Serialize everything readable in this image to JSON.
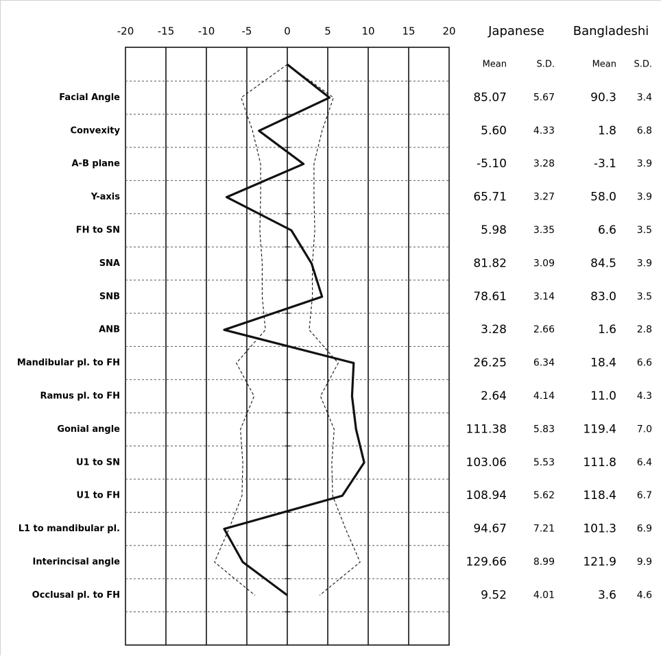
{
  "chart_data": {
    "type": "line",
    "xlim": [
      -20,
      20
    ],
    "x_ticks": [
      "-20",
      "-15",
      "-10",
      "-5",
      "0",
      "5",
      "10",
      "15",
      "20"
    ],
    "rows": [
      "Facial Angle",
      "Convexity",
      "A-B plane",
      "Y-axis",
      "FH to SN",
      "SNA",
      "SNB",
      "ANB",
      "Mandibular pl. to FH",
      "Ramus pl. to FH",
      "Gonial angle",
      "U1 to SN",
      "U1 to FH",
      "L1 to mandibular pl.",
      "Interincisal angle",
      "Occlusal pl. to FH"
    ],
    "series": [
      {
        "style": "solid-thick",
        "values": [
          0,
          5.2,
          -3.5,
          2,
          -7.5,
          0.5,
          3,
          4.3,
          -7.8,
          8.2,
          8,
          8.5,
          9.5,
          6.8,
          -7.8,
          -5.5,
          0
        ]
      },
      {
        "style": "dashed-upper",
        "values": [
          0,
          5.7,
          4.3,
          3.3,
          3.3,
          3.4,
          3.1,
          3.1,
          2.7,
          6.3,
          4.1,
          5.8,
          5.5,
          5.6,
          7.2,
          9,
          4
        ]
      },
      {
        "style": "dashed-lower",
        "values": [
          0,
          -5.7,
          -4.3,
          -3.3,
          -3.3,
          -3.4,
          -3.1,
          -3.1,
          -2.7,
          -6.3,
          -4.1,
          -5.8,
          -5.5,
          -5.6,
          -7.2,
          -9,
          -4
        ]
      }
    ],
    "grid": true
  },
  "table": {
    "groups": [
      "Japanese",
      "Bangladeshi"
    ],
    "subheaders": [
      "Mean",
      "S.D.",
      "Mean",
      "S.D."
    ],
    "rows": [
      [
        "85.07",
        "5.67",
        "90.3",
        "3.4"
      ],
      [
        "5.60",
        "4.33",
        "1.8",
        "6.8"
      ],
      [
        "-5.10",
        "3.28",
        "-3.1",
        "3.9"
      ],
      [
        "65.71",
        "3.27",
        "58.0",
        "3.9"
      ],
      [
        "5.98",
        "3.35",
        "6.6",
        "3.5"
      ],
      [
        "81.82",
        "3.09",
        "84.5",
        "3.9"
      ],
      [
        "78.61",
        "3.14",
        "83.0",
        "3.5"
      ],
      [
        "3.28",
        "2.66",
        "1.6",
        "2.8"
      ],
      [
        "26.25",
        "6.34",
        "18.4",
        "6.6"
      ],
      [
        "2.64",
        "4.14",
        "11.0",
        "4.3"
      ],
      [
        "111.38",
        "5.83",
        "119.4",
        "7.0"
      ],
      [
        "103.06",
        "5.53",
        "111.8",
        "6.4"
      ],
      [
        "108.94",
        "5.62",
        "118.4",
        "6.7"
      ],
      [
        "94.67",
        "7.21",
        "101.3",
        "6.9"
      ],
      [
        "129.66",
        "8.99",
        "121.9",
        "9.9"
      ],
      [
        "9.52",
        "4.01",
        "3.6",
        "4.6"
      ]
    ]
  }
}
